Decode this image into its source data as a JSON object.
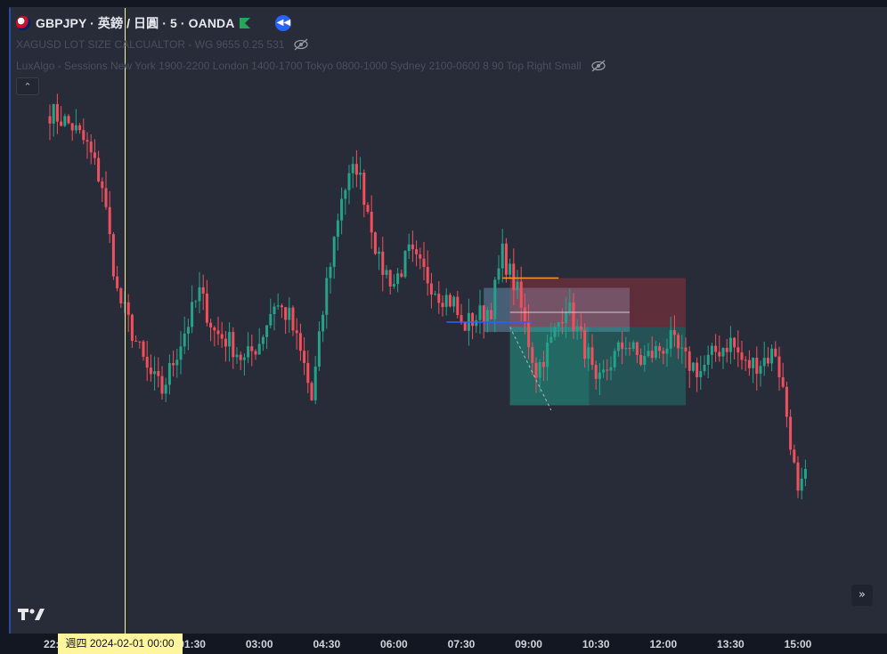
{
  "header": {
    "symbol_line": "GBPJPY · 英鎊 / 日圓 · 5 · OANDA",
    "flag_icon": "gbp-flag-icon",
    "market_status_icon": "green-flag-icon",
    "replay_icon": "rewind-icon"
  },
  "indicators": [
    {
      "label": "XAGUSD LOT SIZE CALCUALTOR - WG 9655 0.25 531",
      "visibility_icon": "eye-off-icon"
    },
    {
      "label": "LuxAlgo - Sessions New York 1900-2200 London 1400-1700 Tokyo 0800-1000 Sydney 2100-0600 8 90 Top Right Small",
      "visibility_icon": "eye-off-icon"
    }
  ],
  "controls": {
    "collapse_icon": "chevron-up-icon",
    "collapse_glyph": "⌃",
    "scroll_icon": "double-chevron-right-icon",
    "scroll_glyph": "»",
    "logo": "tradingview-logo"
  },
  "colors": {
    "up": "#22a38a",
    "down": "#f0505e",
    "crosshair": "#fff59d"
  },
  "crosshair": {
    "label": "週四 2024-02-01    00:00",
    "time_index": 20
  },
  "chart_data": {
    "type": "candlestick",
    "interval_minutes": 5,
    "x_ticks": [
      {
        "label": "22:30",
        "index": 2
      },
      {
        "label": "01:30",
        "index": 38
      },
      {
        "label": "03:00",
        "index": 56
      },
      {
        "label": "04:30",
        "index": 74
      },
      {
        "label": "06:00",
        "index": 92
      },
      {
        "label": "07:30",
        "index": 110
      },
      {
        "label": "09:00",
        "index": 128
      },
      {
        "label": "10:30",
        "index": 146
      },
      {
        "label": "12:00",
        "index": 164
      },
      {
        "label": "13:30",
        "index": 182
      },
      {
        "label": "15:00",
        "index": 200
      }
    ],
    "y_range": [
      0,
      100
    ],
    "close_path": [
      [
        0,
        97
      ],
      [
        6,
        94
      ],
      [
        10,
        90
      ],
      [
        14,
        82
      ],
      [
        18,
        60
      ],
      [
        22,
        52
      ],
      [
        26,
        44
      ],
      [
        30,
        40
      ],
      [
        34,
        48
      ],
      [
        38,
        56
      ],
      [
        40,
        60
      ],
      [
        44,
        52
      ],
      [
        48,
        50
      ],
      [
        52,
        46
      ],
      [
        56,
        50
      ],
      [
        60,
        58
      ],
      [
        64,
        55
      ],
      [
        68,
        45
      ],
      [
        70,
        38
      ],
      [
        74,
        62
      ],
      [
        78,
        80
      ],
      [
        82,
        86
      ],
      [
        86,
        74
      ],
      [
        88,
        66
      ],
      [
        92,
        62
      ],
      [
        96,
        68
      ],
      [
        100,
        64
      ],
      [
        104,
        60
      ],
      [
        108,
        58
      ],
      [
        110,
        53
      ],
      [
        114,
        55
      ],
      [
        118,
        57
      ],
      [
        121,
        68
      ],
      [
        123,
        64
      ],
      [
        125,
        60
      ],
      [
        128,
        50
      ],
      [
        130,
        44
      ],
      [
        134,
        50
      ],
      [
        138,
        58
      ],
      [
        140,
        54
      ],
      [
        144,
        47
      ],
      [
        146,
        40
      ],
      [
        150,
        46
      ],
      [
        154,
        50
      ],
      [
        158,
        46
      ],
      [
        162,
        48
      ],
      [
        166,
        50
      ],
      [
        170,
        46
      ],
      [
        174,
        44
      ],
      [
        178,
        48
      ],
      [
        182,
        50
      ],
      [
        186,
        45
      ],
      [
        190,
        46
      ],
      [
        194,
        48
      ],
      [
        196,
        40
      ],
      [
        198,
        30
      ],
      [
        200,
        18
      ],
      [
        202,
        22
      ]
    ],
    "volatility": 2.2,
    "annotations": {
      "orange_line": {
        "x": [
          121,
          136
        ],
        "y": 63
      },
      "blue_line": {
        "x": [
          106,
          129
        ],
        "y": 54
      },
      "short_position": {
        "x": [
          123,
          170
        ],
        "entry": 53,
        "stop": 63,
        "target": 37
      },
      "blue_box": {
        "x": [
          116,
          155
        ],
        "y": [
          52,
          61
        ]
      },
      "gray_line": {
        "x": [
          123,
          155
        ],
        "y": 56
      },
      "dashed_path": {
        "x": [
          123,
          134
        ],
        "y": [
          53,
          36
        ]
      }
    }
  }
}
